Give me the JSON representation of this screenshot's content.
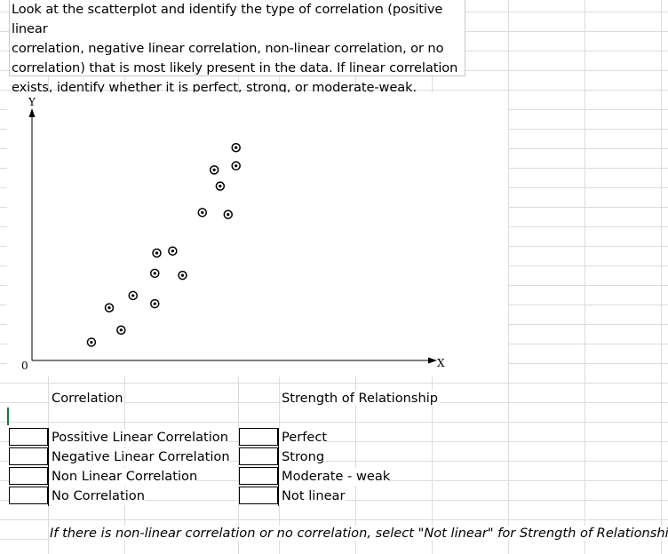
{
  "question": {
    "lines": [
      "Look at the scatterplot and identify the type of correlation (positive linear",
      "correlation, negative linear correlation, non-linear correlation, or no",
      "correlation) that is most likely present in the data. If linear correlation",
      "exists, identify whether it is perfect, strong, or moderate-weak."
    ]
  },
  "chart": {
    "y_axis_label": "Y",
    "x_axis_label": "X",
    "origin_label": "0"
  },
  "chart_data": {
    "type": "scatter",
    "xlabel": "X",
    "ylabel": "Y",
    "xlim": [
      0,
      20
    ],
    "ylim": [
      0,
      12
    ],
    "x": [
      3.0,
      3.9,
      4.5,
      5.1,
      6.2,
      6.2,
      6.3,
      7.1,
      7.6,
      8.6,
      9.2,
      9.5,
      9.9,
      10.3,
      10.3
    ],
    "y": [
      0.9,
      2.6,
      1.5,
      3.2,
      2.8,
      4.3,
      5.3,
      5.4,
      4.2,
      7.3,
      9.4,
      8.6,
      7.2,
      9.6,
      10.5
    ]
  },
  "correlation_section": {
    "header": "Correlation",
    "options": [
      "Possitive Linear Correlation",
      "Negative Linear Correlation",
      "Non Linear Correlation",
      "No Correlation"
    ]
  },
  "strength_section": {
    "header": "Strength of Relationship",
    "options": [
      "Perfect",
      "Strong",
      "Moderate - weak",
      "Not linear"
    ]
  },
  "note": "If there is non-linear correlation or no correlation, select \"Not linear\" for Strength of Relationship."
}
